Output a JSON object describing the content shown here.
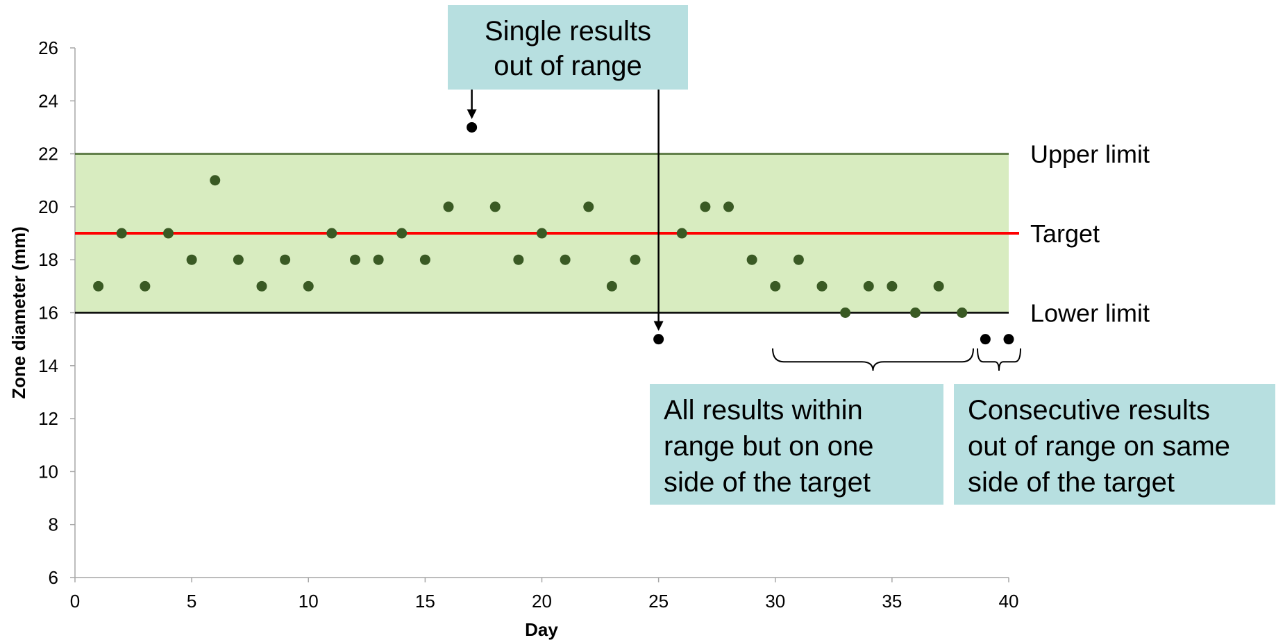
{
  "chart_data": {
    "type": "scatter",
    "title": "",
    "xlabel": "Day",
    "ylabel": "Zone diameter (mm)",
    "xlim": [
      0,
      40
    ],
    "ylim": [
      6,
      26
    ],
    "x_ticks": [
      0,
      5,
      10,
      15,
      20,
      25,
      30,
      35,
      40
    ],
    "y_ticks": [
      6,
      8,
      10,
      12,
      14,
      16,
      18,
      20,
      22,
      24,
      26
    ],
    "grid": false,
    "acceptable_range": {
      "lower": 16,
      "upper": 22,
      "fill_color": "#d8ecc0"
    },
    "reference_lines": [
      {
        "label": "Upper limit",
        "y": 22,
        "color": "#4a6b30"
      },
      {
        "label": "Target",
        "y": 19,
        "color": "#ff0000"
      },
      {
        "label": "Lower limit",
        "y": 16,
        "color": "#000000"
      }
    ],
    "series": [
      {
        "point_color": "#3a5a24",
        "points": [
          [
            1,
            17
          ],
          [
            2,
            19
          ],
          [
            3,
            17
          ],
          [
            4,
            19
          ],
          [
            5,
            18
          ],
          [
            6,
            21
          ],
          [
            7,
            18
          ],
          [
            8,
            17
          ],
          [
            9,
            18
          ],
          [
            10,
            17
          ],
          [
            11,
            19
          ],
          [
            12,
            18
          ],
          [
            13,
            18
          ],
          [
            14,
            19
          ],
          [
            15,
            18
          ],
          [
            16,
            20
          ],
          [
            18,
            20
          ],
          [
            19,
            18
          ],
          [
            20,
            19
          ],
          [
            21,
            18
          ],
          [
            22,
            20
          ],
          [
            23,
            17
          ],
          [
            24,
            18
          ],
          [
            26,
            19
          ],
          [
            27,
            20
          ],
          [
            28,
            20
          ],
          [
            29,
            18
          ],
          [
            30,
            17
          ],
          [
            31,
            18
          ],
          [
            32,
            17
          ],
          [
            33,
            16
          ],
          [
            34,
            17
          ],
          [
            35,
            17
          ],
          [
            36,
            16
          ],
          [
            37,
            17
          ],
          [
            38,
            16
          ]
        ]
      },
      {
        "point_color": "#000000",
        "points": [
          [
            17,
            23
          ],
          [
            25,
            15
          ],
          [
            39,
            15
          ],
          [
            40,
            15
          ]
        ]
      }
    ],
    "annotations": [
      {
        "lines": [
          "Single results",
          "out of range"
        ]
      },
      {
        "lines": [
          "All results within",
          "range but on one",
          "side of the target"
        ]
      },
      {
        "lines": [
          "Consecutive results",
          "out of range on same",
          "side of the target"
        ]
      }
    ],
    "callout_fill": "#b7dfe0"
  }
}
